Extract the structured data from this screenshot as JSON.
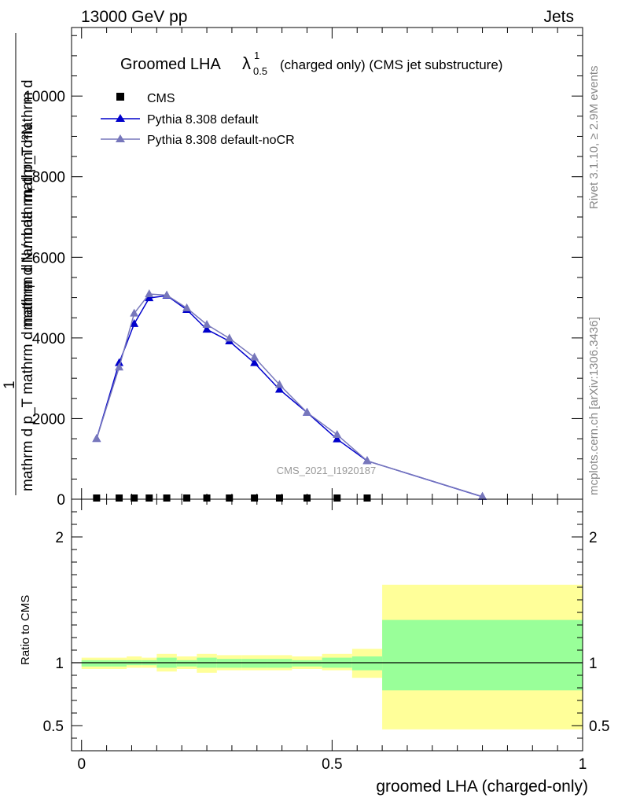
{
  "header": {
    "left": "13000 GeV pp",
    "right": "Jets"
  },
  "side_labels": {
    "rivet": "Rivet 3.1.10, ≥ 2.9M events",
    "mcplots": "mcplots.cern.ch [arXiv:1306.3436]"
  },
  "chart_data": [
    {
      "type": "line",
      "title_main": "Groomed LHA",
      "title_lambda": "λ",
      "title_sup": "1",
      "title_sub": "0.5",
      "title_rest": "(charged only) (CMS jet substructure)",
      "ylabel": {
        "numerator": "mathrm d²N",
        "denominator": "mathrm d p_T mathrm d mathrm d lambda",
        "fraction_1": "1",
        "mid": "mathrm d N / mathrm d p_T mathrm d",
        "p_sub": "T",
        "frac_sub": "T"
      },
      "watermark": "CMS_2021_I1920187",
      "ylim": [
        0,
        11700
      ],
      "yticks": [
        0,
        2000,
        4000,
        6000,
        8000,
        10000
      ],
      "ytick_labels": [
        "0",
        "2000",
        "4000",
        "6000",
        "8000",
        "10000"
      ],
      "xlim": [
        -0.02,
        1.0
      ],
      "legend": {
        "placement": "top-left",
        "entries": [
          {
            "label": "CMS",
            "marker": "square",
            "color": "#000000"
          },
          {
            "label": "Pythia 8.308 default",
            "marker": "triangle",
            "color": "#0000cc"
          },
          {
            "label": "Pythia 8.308 default-noCR",
            "marker": "triangle",
            "color": "#7777bb"
          }
        ]
      },
      "series": [
        {
          "name": "CMS",
          "color": "#000000",
          "x": [
            0.03,
            0.075,
            0.105,
            0.135,
            0.17,
            0.21,
            0.25,
            0.295,
            0.345,
            0.395,
            0.45,
            0.51,
            0.57
          ],
          "values": [
            0,
            0,
            0,
            0,
            0,
            0,
            0,
            0,
            0,
            0,
            0,
            0,
            0
          ]
        },
        {
          "name": "Pythia 8.308 default",
          "color": "#0000cc",
          "x": [
            0.03,
            0.075,
            0.105,
            0.135,
            0.17,
            0.21,
            0.25,
            0.295,
            0.345,
            0.395,
            0.45,
            0.51,
            0.57,
            0.8
          ],
          "values": [
            1500,
            3380,
            4350,
            4990,
            5050,
            4700,
            4210,
            3920,
            3380,
            2720,
            2150,
            1490,
            950,
            60
          ]
        },
        {
          "name": "Pythia 8.308 default-noCR",
          "color": "#7777bb",
          "x": [
            0.03,
            0.075,
            0.105,
            0.135,
            0.17,
            0.21,
            0.25,
            0.295,
            0.345,
            0.395,
            0.45,
            0.51,
            0.57,
            0.8
          ],
          "values": [
            1500,
            3270,
            4610,
            5090,
            5060,
            4740,
            4330,
            3990,
            3520,
            2840,
            2150,
            1600,
            950,
            65
          ]
        }
      ]
    },
    {
      "type": "area",
      "ylabel": "Ratio to CMS",
      "xlabel": "groomed LHA (charged-only)",
      "ylim": [
        0.3,
        2.3
      ],
      "yticks": [
        0.5,
        1,
        2
      ],
      "ytick_labels": [
        "0.5",
        "1",
        "2"
      ],
      "xticks": [
        0,
        0.5,
        1
      ],
      "xtick_labels": [
        "0",
        "0.5",
        "1"
      ],
      "xlim": [
        -0.02,
        1.0
      ],
      "bands": {
        "edges": [
          0.0,
          0.06,
          0.09,
          0.12,
          0.15,
          0.19,
          0.23,
          0.27,
          0.32,
          0.37,
          0.42,
          0.48,
          0.54,
          0.6,
          1.0
        ],
        "yellow_low": [
          0.95,
          0.95,
          0.96,
          0.96,
          0.93,
          0.95,
          0.92,
          0.94,
          0.94,
          0.94,
          0.95,
          0.94,
          0.88,
          0.47
        ],
        "yellow_high": [
          1.04,
          1.04,
          1.05,
          1.04,
          1.07,
          1.05,
          1.07,
          1.06,
          1.06,
          1.06,
          1.05,
          1.07,
          1.11,
          1.62
        ],
        "green_low": [
          0.97,
          0.97,
          0.98,
          0.98,
          0.96,
          0.97,
          0.96,
          0.96,
          0.96,
          0.96,
          0.97,
          0.96,
          0.94,
          0.78
        ],
        "green_high": [
          1.02,
          1.02,
          1.02,
          1.02,
          1.04,
          1.02,
          1.04,
          1.03,
          1.03,
          1.03,
          1.02,
          1.04,
          1.05,
          1.34
        ],
        "yellow_color": "#ffff99",
        "green_color": "#99ff99"
      },
      "reference": 1
    }
  ]
}
